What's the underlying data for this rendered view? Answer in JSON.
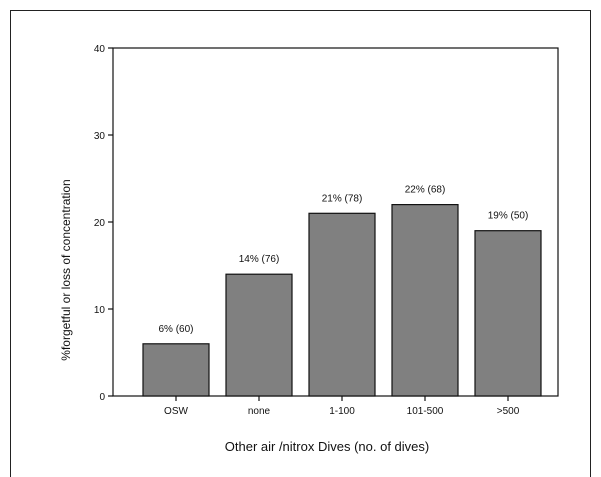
{
  "chart_data": {
    "type": "bar",
    "categories": [
      "OSW",
      "none",
      "1-100",
      "101-500",
      ">500"
    ],
    "values": [
      6,
      14,
      21,
      22,
      19
    ],
    "data_labels": [
      "6% (60)",
      "14% (76)",
      "21% (78)",
      "22% (68)",
      "19% (50)"
    ],
    "xlabel": "Other air /nitrox Dives (no. of dives)",
    "ylabel": "%forgetful or loss of concentration",
    "ylim": [
      0,
      40
    ],
    "yticks": [
      0,
      10,
      20,
      30,
      40
    ],
    "grid": false,
    "bar_color": "#808080"
  }
}
